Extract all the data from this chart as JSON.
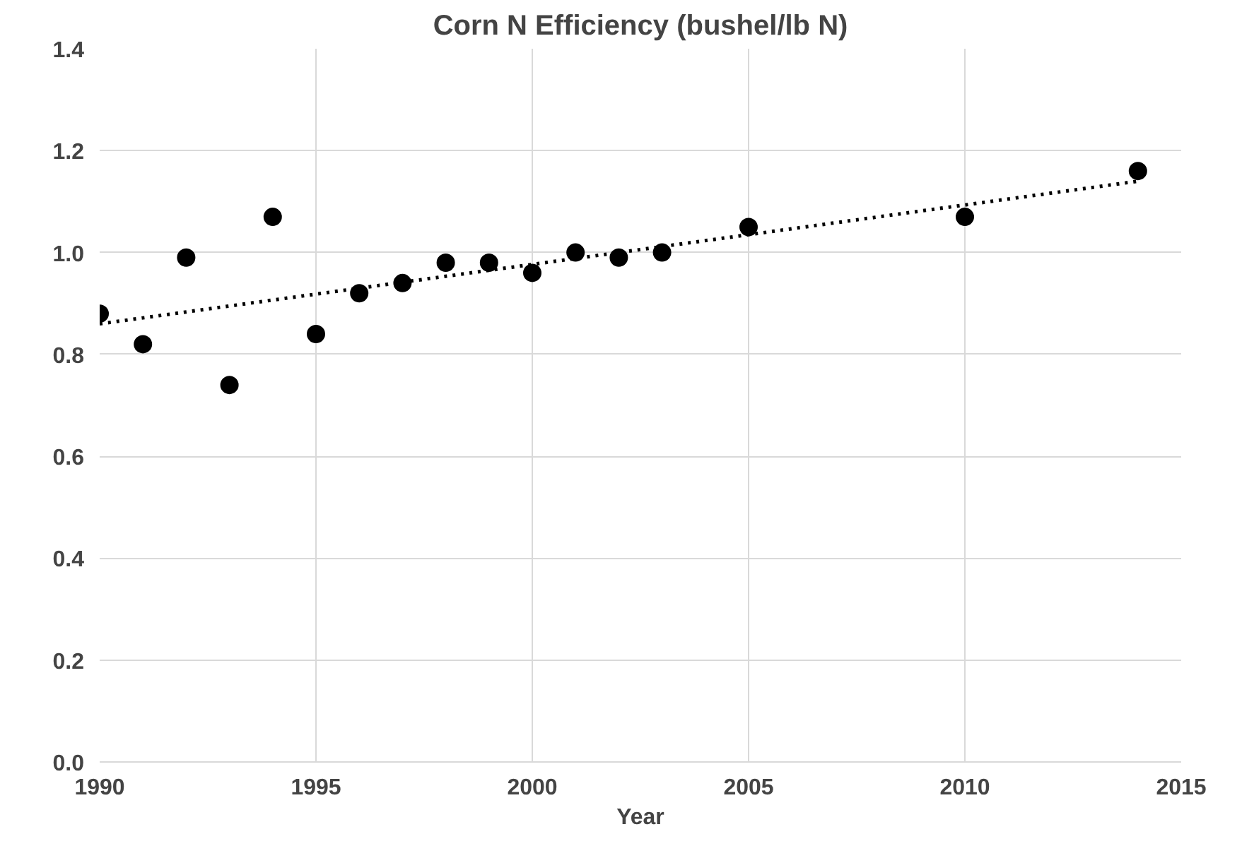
{
  "chart_data": {
    "type": "scatter",
    "title": "Corn N Efficiency (bushel/lb N)",
    "xlabel": "Year",
    "series": [
      {
        "color": "#000000",
        "marker": "circle",
        "x": [
          1990,
          1991,
          1992,
          1993,
          1994,
          1995,
          1996,
          1997,
          1998,
          1999,
          2000,
          2001,
          2002,
          2003,
          2005,
          2010,
          2014
        ],
        "values": [
          0.88,
          0.82,
          0.99,
          0.74,
          1.07,
          0.84,
          0.92,
          0.94,
          0.98,
          0.98,
          0.96,
          1.0,
          0.99,
          1.0,
          1.05,
          1.07,
          1.16
        ]
      },
      {
        "type": "line",
        "color": "#000000",
        "line_style": "dotted",
        "x": [
          1990,
          2014
        ],
        "values": [
          0.86,
          1.14
        ]
      }
    ],
    "xlim": [
      1990,
      2015
    ],
    "xticks": [
      1990,
      1995,
      2000,
      2005,
      2010,
      2015
    ],
    "ylim": [
      0,
      1.4
    ],
    "yticks": [
      {
        "value": 0,
        "label": "0.0"
      },
      0.2,
      0.4,
      0.6,
      0.8,
      {
        "value": 1,
        "label": "1.0"
      },
      1.2,
      1.4
    ],
    "grid": true
  }
}
